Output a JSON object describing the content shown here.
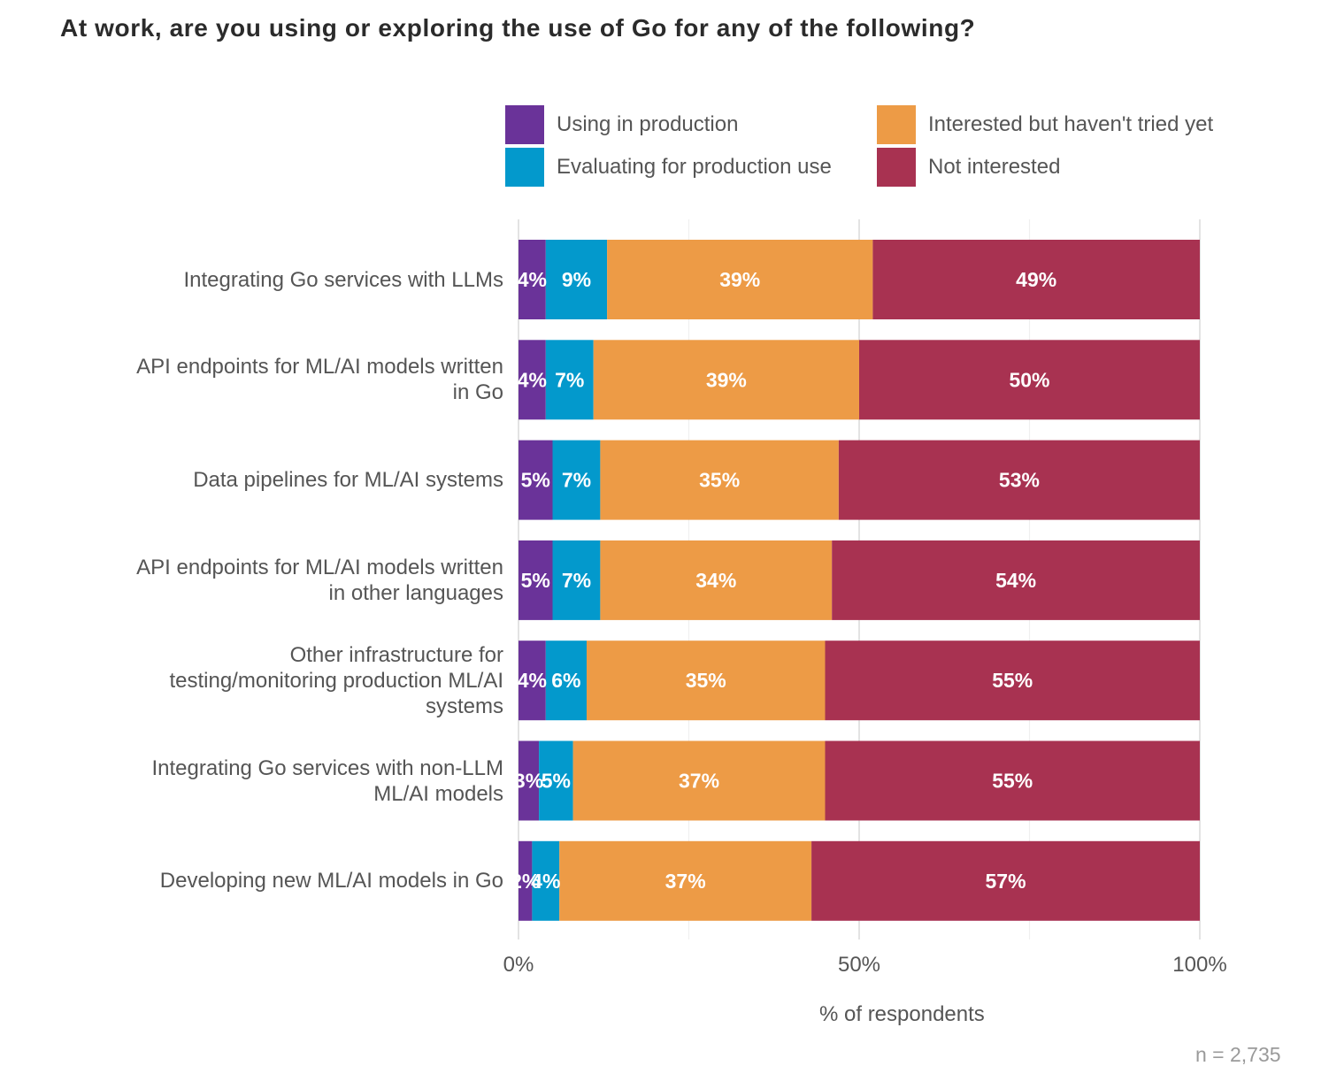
{
  "chart_data": {
    "type": "bar",
    "orientation": "horizontal",
    "stacked": true,
    "title": "At work, are you using or exploring the use of Go for any of the following?",
    "xlabel": "% of respondents",
    "ylabel": "",
    "xlim": [
      0,
      100
    ],
    "x_ticks": [
      "0%",
      "50%",
      "100%"
    ],
    "x_tick_values": [
      0,
      50,
      100
    ],
    "grid": true,
    "legend_position": "top",
    "caption": "n =  2,735",
    "categories": [
      [
        "Integrating Go services with LLMs"
      ],
      [
        "API endpoints for ML/AI models written",
        "in Go"
      ],
      [
        "Data pipelines for ML/AI systems"
      ],
      [
        "API endpoints for ML/AI models written",
        "in other languages"
      ],
      [
        "Other infrastructure for",
        "testing/monitoring production ML/AI",
        "systems"
      ],
      [
        "Integrating Go services with non-LLM",
        "ML/AI models"
      ],
      [
        "Developing new ML/AI models in Go"
      ]
    ],
    "series": [
      {
        "name": "Using in production",
        "color": "#6a3399",
        "values": [
          4,
          4,
          5,
          5,
          4,
          3,
          2
        ],
        "labels": [
          "4%",
          "4%",
          "5%",
          "5%",
          "4%",
          "3%",
          "2%"
        ]
      },
      {
        "name": "Evaluating for production use",
        "color": "#0399cc",
        "values": [
          9,
          7,
          7,
          7,
          6,
          5,
          4
        ],
        "labels": [
          "9%",
          "7%",
          "7%",
          "7%",
          "6%",
          "5%",
          "4%"
        ]
      },
      {
        "name": "Interested but haven't tried yet",
        "color": "#ed9b46",
        "values": [
          39,
          39,
          35,
          34,
          35,
          37,
          37
        ],
        "labels": [
          "39%",
          "39%",
          "35%",
          "34%",
          "35%",
          "37%",
          "37%"
        ]
      },
      {
        "name": "Not interested",
        "color": "#a83251",
        "values": [
          49,
          50,
          53,
          54,
          55,
          55,
          57
        ],
        "labels": [
          "49%",
          "50%",
          "53%",
          "54%",
          "55%",
          "55%",
          "57%"
        ]
      }
    ]
  }
}
